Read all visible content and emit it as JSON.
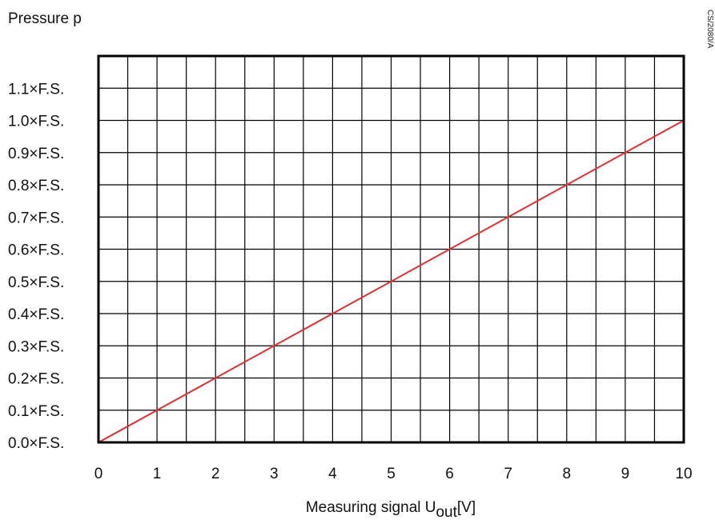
{
  "chart_data": {
    "type": "line",
    "ylabel": "Pressure p",
    "xlabel_main": "Measuring signal U",
    "xlabel_sub": "out",
    "xlabel_tail": "[V]",
    "side_id": "CS/2080/A",
    "x_ticks": [
      "0",
      "1",
      "2",
      "3",
      "4",
      "5",
      "6",
      "7",
      "8",
      "9",
      "10"
    ],
    "y_ticks": [
      "0.0×F.S.",
      "0.1×F.S.",
      "0.2×F.S.",
      "0.3×F.S.",
      "0.4×F.S.",
      "0.5×F.S.",
      "0.6×F.S.",
      "0.7×F.S.",
      "0.8×F.S.",
      "0.9×F.S.",
      "1.0×F.S.",
      "1.1×F.S."
    ],
    "xlim": [
      0,
      10
    ],
    "ylim": [
      0,
      1.2
    ],
    "x_grid_step": 0.5,
    "y_grid_step": 0.1,
    "grid": true,
    "series": [
      {
        "x": [
          0,
          10
        ],
        "y": [
          0,
          1.0
        ],
        "color": "#e03030"
      }
    ]
  }
}
